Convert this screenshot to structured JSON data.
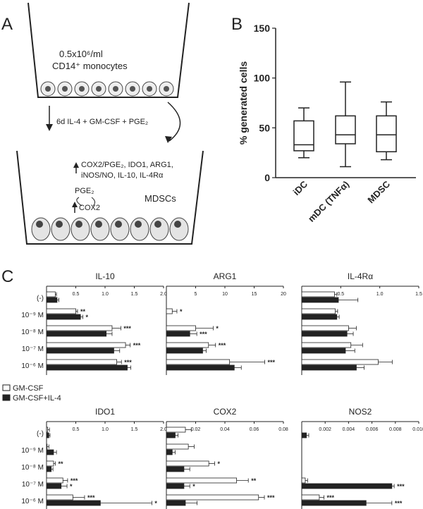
{
  "panel_a": {
    "letter": "A",
    "top_cells_line1": "0.5x10⁶/ml",
    "top_cells_line2": "CD14⁺ monocytes",
    "treatment": "6d IL-4 + GM-CSF + PGE₂",
    "markers_line1": "COX2/PGE₂, IDO1, ARG1,",
    "markers_line2": "iNOS/NO, IL-10, IL-4Rα",
    "pge2": "PGE₂",
    "cox2": "COX2",
    "mdsc": "MDSCs"
  },
  "panel_b_letter": "B",
  "panel_c_letter": "C",
  "legend": [
    "GM-CSF",
    "GM-CSF+IL-4"
  ],
  "colors": {
    "white_bar": "#ffffff",
    "black_bar": "#222222",
    "stroke": "#222222"
  },
  "chart_data": [
    {
      "type": "box",
      "ylabel": "% generated cells",
      "ylim": [
        0,
        150
      ],
      "yticks": [
        "0",
        "50",
        "100",
        "150"
      ],
      "categories": [
        "iDC",
        "mDC (TNFα)",
        "MDSC"
      ],
      "boxes": [
        {
          "label": "iDC",
          "min": 20,
          "q1": 27,
          "median": 33,
          "q3": 57,
          "max": 70
        },
        {
          "label": "mDC (TNFα)",
          "min": 11,
          "q1": 34,
          "median": 43,
          "q3": 62,
          "max": 96
        },
        {
          "label": "MDSC",
          "min": 18,
          "q1": 26,
          "median": 43,
          "q3": 62,
          "max": 76
        }
      ]
    },
    {
      "type": "bar",
      "orientation": "horizontal",
      "title": "IL-10",
      "categories": [
        "(-)",
        "10⁻⁹ M",
        "10⁻⁸ M",
        "10⁻⁷ M",
        "10⁻⁶ M"
      ],
      "xlim": [
        0,
        2.0
      ],
      "ticks": [
        "0.5",
        "1.0",
        "1.5",
        "2.0"
      ],
      "series": [
        {
          "name": "GM-CSF",
          "values": [
            0.15,
            0.5,
            1.12,
            1.35,
            1.2
          ],
          "err": [
            0.02,
            0.03,
            0.15,
            0.08,
            0.08
          ]
        },
        {
          "name": "GM-CSF+IL-4",
          "values": [
            0.18,
            0.58,
            1.02,
            1.15,
            1.38
          ],
          "err": [
            0.03,
            0.04,
            0.1,
            0.1,
            0.06
          ]
        }
      ],
      "sig": [
        [
          "",
          "**",
          "***",
          "***",
          "***"
        ],
        [
          "",
          "*",
          "",
          "",
          ""
        ]
      ]
    },
    {
      "type": "bar",
      "orientation": "horizontal",
      "title": "ARG1",
      "categories": [
        "(-)",
        "10⁻⁹ M",
        "10⁻⁸ M",
        "10⁻⁷ M",
        "10⁻⁶ M"
      ],
      "xlim": [
        0,
        20
      ],
      "ticks": [
        "5",
        "10",
        "15",
        "20"
      ],
      "series": [
        {
          "name": "GM-CSF",
          "values": [
            0,
            1.0,
            5.0,
            7.2,
            10.8
          ],
          "err": [
            0,
            0.8,
            3.0,
            1.2,
            6.0
          ]
        },
        {
          "name": "GM-CSF+IL-4",
          "values": [
            0,
            0,
            4.0,
            6.2,
            11.6
          ],
          "err": [
            0,
            0,
            1.2,
            0.6,
            1.2
          ]
        }
      ],
      "sig": [
        [
          "",
          "*",
          "*",
          "***",
          "***"
        ],
        [
          "",
          "",
          "***",
          "",
          ""
        ]
      ]
    },
    {
      "type": "bar",
      "orientation": "horizontal",
      "title": "IL-4Rα",
      "categories": [
        "(-)",
        "10⁻⁹ M",
        "10⁻⁸ M",
        "10⁻⁷ M",
        "10⁻⁶ M"
      ],
      "xlim": [
        0,
        1.5
      ],
      "ticks": [
        "0.5",
        "1.0",
        "1.5"
      ],
      "series": [
        {
          "name": "GM-CSF",
          "values": [
            0.42,
            0.43,
            0.6,
            0.63,
            0.98
          ],
          "err": [
            0.03,
            0.03,
            0.1,
            0.15,
            0.18
          ]
        },
        {
          "name": "GM-CSF+IL-4",
          "values": [
            0.47,
            0.45,
            0.58,
            0.56,
            0.7
          ],
          "err": [
            0.25,
            0.03,
            0.08,
            0.12,
            0.1
          ]
        }
      ],
      "sig": [
        [
          "",
          "",
          "",
          "",
          ""
        ],
        [
          "",
          "",
          "",
          "",
          ""
        ]
      ]
    },
    {
      "type": "bar",
      "orientation": "horizontal",
      "title": "IDO1",
      "categories": [
        "(-)",
        "10⁻⁹ M",
        "10⁻⁸ M",
        "10⁻⁷ M",
        "10⁻⁶ M"
      ],
      "xlim": [
        0,
        2.0
      ],
      "ticks": [
        "0.5",
        "1.0",
        "1.5",
        "2.0"
      ],
      "series": [
        {
          "name": "GM-CSF",
          "values": [
            0.02,
            0.01,
            0.12,
            0.28,
            0.45
          ],
          "err": [
            0.03,
            0.03,
            0.03,
            0.08,
            0.2
          ]
        },
        {
          "name": "GM-CSF+IL-4",
          "values": [
            0.04,
            0.12,
            0.08,
            0.25,
            0.92
          ],
          "err": [
            0.02,
            0.05,
            0.03,
            0.1,
            0.88
          ]
        }
      ],
      "sig": [
        [
          "",
          "",
          "**",
          "***",
          "***"
        ],
        [
          "",
          "",
          "",
          "*",
          "*"
        ]
      ]
    },
    {
      "type": "bar",
      "orientation": "horizontal",
      "title": "COX2",
      "categories": [
        "(-)",
        "10⁻⁹ M",
        "10⁻⁸ M",
        "10⁻⁷ M",
        "10⁻⁶ M"
      ],
      "xlim": [
        0,
        0.08
      ],
      "ticks": [
        "0.02",
        "0.04",
        "0.06",
        "0.08"
      ],
      "series": [
        {
          "name": "GM-CSF",
          "values": [
            0.013,
            0.015,
            0.029,
            0.048,
            0.063
          ],
          "err": [
            0.004,
            0.004,
            0.004,
            0.008,
            0.004
          ]
        },
        {
          "name": "GM-CSF+IL-4",
          "values": [
            0.006,
            0.004,
            0.012,
            0.012,
            0.013
          ],
          "err": [
            0.002,
            0.002,
            0.004,
            0.004,
            0.008
          ]
        }
      ],
      "sig": [
        [
          "",
          "",
          "*",
          "**",
          "***"
        ],
        [
          "",
          "",
          "",
          "*",
          ""
        ]
      ]
    },
    {
      "type": "bar",
      "orientation": "horizontal",
      "title": "NOS2",
      "categories": [
        "(-)",
        "10⁻⁹ M",
        "10⁻⁸ M",
        "10⁻⁷ M",
        "10⁻⁶ M"
      ],
      "xlim": [
        0,
        0.01
      ],
      "ticks": [
        "0.002",
        "0.004",
        "0.006",
        "0.008",
        "0.010"
      ],
      "series": [
        {
          "name": "GM-CSF",
          "values": [
            0,
            0,
            0,
            0.0003,
            0.0015
          ],
          "err": [
            0,
            0,
            0,
            0.0002,
            0.0004
          ]
        },
        {
          "name": "GM-CSF+IL-4",
          "values": [
            0.0004,
            0,
            0,
            0.0077,
            0.0055
          ],
          "err": [
            0.0002,
            0,
            0,
            0.0002,
            0.0022
          ]
        }
      ],
      "sig": [
        [
          "",
          "",
          "",
          "",
          "***"
        ],
        [
          "",
          "",
          "",
          "***",
          "***"
        ]
      ]
    }
  ]
}
